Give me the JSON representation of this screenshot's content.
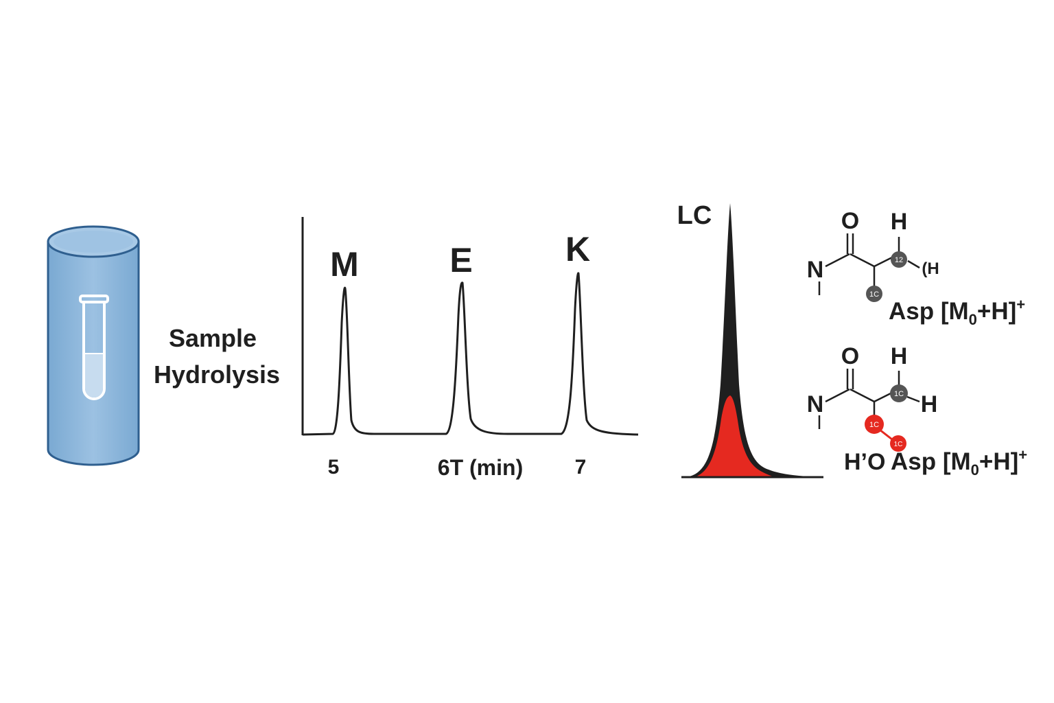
{
  "colors": {
    "cylinder": "#8ab4d8",
    "cylinder_edge": "#2f5f8f",
    "tube": "#ffffff",
    "highlight_red": "#e52920",
    "atom_gray": "#555555",
    "ink": "#1f1f1f"
  },
  "icons": [
    "sample-cylinder-icon",
    "test-tube-icon"
  ],
  "sample_label": [
    "Sample",
    "Hydrolysis"
  ],
  "chromatogram": {
    "peaks": [
      {
        "label": "M",
        "time": 5.08
      },
      {
        "label": "E",
        "time": 6.0
      },
      {
        "label": "K",
        "time": 6.92
      }
    ],
    "tick_labels": [
      "5",
      "6T (min)",
      "7"
    ],
    "tick_values": [
      5,
      6,
      7
    ]
  },
  "lc_panel": {
    "label": "LC"
  },
  "structure_top": {
    "atoms": {
      "o": "O",
      "h_top": "H",
      "n": "N",
      "h_side": "(H"
    },
    "nodes": {
      "carbon_12": "12",
      "carbon_1c": "1C"
    },
    "label": "Asp [M",
    "label_sub": "0",
    "label_tail": "+H]",
    "label_sup": "+"
  },
  "structure_bottom": {
    "atoms": {
      "o": "O",
      "h_top": "H",
      "n": "N",
      "h_right": "H",
      "h_o": "H’O"
    },
    "nodes": {
      "carbon_1c_gray": "1C",
      "carbon_1c_red_a": "1C",
      "carbon_1c_red_b": "1C"
    },
    "label": "Asp [M",
    "label_sub": "0",
    "label_tail": "+H]",
    "label_sup": "+"
  }
}
